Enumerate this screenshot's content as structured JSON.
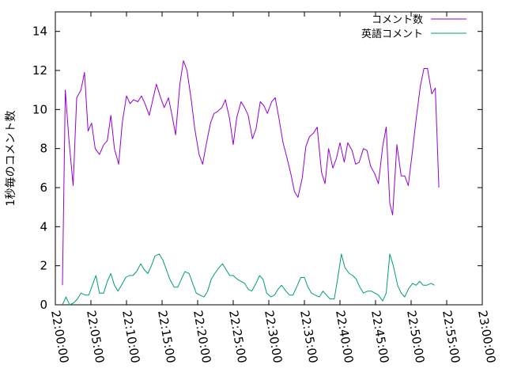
{
  "chart_data": {
    "type": "line",
    "title": "",
    "xlabel": "",
    "ylabel": "1秒毎のコメント数",
    "xlim": [
      "22:00:00",
      "23:00:00"
    ],
    "ylim": [
      0,
      15
    ],
    "grid": false,
    "legend_position": "top-right",
    "x_ticks": [
      "22:00:00",
      "22:05:00",
      "22:10:00",
      "22:15:00",
      "22:20:00",
      "22:25:00",
      "22:30:00",
      "22:35:00",
      "22:40:00",
      "22:45:00",
      "22:50:00",
      "22:55:00",
      "23:00:00"
    ],
    "y_ticks": [
      0,
      2,
      4,
      6,
      8,
      10,
      12,
      14
    ],
    "x_unit": "minutes after 22:00:00",
    "series": [
      {
        "name": "コメント数",
        "color": "#9400D3",
        "points": [
          [
            1.0,
            1.0
          ],
          [
            1.4,
            11.0
          ],
          [
            1.9,
            8.5
          ],
          [
            2.5,
            6.1
          ],
          [
            3.0,
            10.6
          ],
          [
            3.6,
            11.0
          ],
          [
            4.1,
            11.9
          ],
          [
            4.6,
            8.9
          ],
          [
            5.1,
            9.3
          ],
          [
            5.6,
            8.0
          ],
          [
            6.2,
            7.7
          ],
          [
            6.8,
            8.2
          ],
          [
            7.3,
            8.4
          ],
          [
            7.8,
            9.7
          ],
          [
            8.3,
            8.0
          ],
          [
            8.9,
            7.2
          ],
          [
            9.4,
            9.3
          ],
          [
            10.0,
            10.7
          ],
          [
            10.5,
            10.3
          ],
          [
            11.0,
            10.5
          ],
          [
            11.6,
            10.4
          ],
          [
            12.1,
            10.7
          ],
          [
            12.6,
            10.3
          ],
          [
            13.2,
            9.7
          ],
          [
            13.7,
            10.5
          ],
          [
            14.2,
            11.3
          ],
          [
            14.8,
            10.6
          ],
          [
            15.3,
            10.1
          ],
          [
            15.9,
            10.6
          ],
          [
            16.4,
            9.7
          ],
          [
            16.9,
            8.7
          ],
          [
            17.5,
            11.3
          ],
          [
            18.0,
            12.5
          ],
          [
            18.5,
            12.0
          ],
          [
            19.1,
            10.5
          ],
          [
            19.6,
            9.0
          ],
          [
            20.2,
            7.7
          ],
          [
            20.7,
            7.2
          ],
          [
            21.2,
            8.2
          ],
          [
            21.8,
            9.3
          ],
          [
            22.3,
            9.8
          ],
          [
            22.8,
            9.9
          ],
          [
            23.4,
            10.1
          ],
          [
            23.9,
            10.5
          ],
          [
            24.5,
            9.5
          ],
          [
            25.0,
            8.2
          ],
          [
            25.5,
            9.6
          ],
          [
            26.1,
            10.4
          ],
          [
            26.6,
            10.1
          ],
          [
            27.1,
            9.7
          ],
          [
            27.7,
            8.5
          ],
          [
            28.2,
            9.0
          ],
          [
            28.8,
            10.4
          ],
          [
            29.3,
            10.2
          ],
          [
            29.8,
            9.8
          ],
          [
            30.4,
            10.4
          ],
          [
            30.9,
            10.6
          ],
          [
            31.4,
            9.6
          ],
          [
            32.0,
            8.3
          ],
          [
            32.5,
            7.6
          ],
          [
            33.1,
            6.7
          ],
          [
            33.6,
            5.8
          ],
          [
            34.1,
            5.5
          ],
          [
            34.7,
            6.5
          ],
          [
            35.2,
            8.1
          ],
          [
            35.7,
            8.6
          ],
          [
            36.3,
            8.8
          ],
          [
            36.8,
            9.1
          ],
          [
            37.4,
            6.8
          ],
          [
            37.9,
            6.2
          ],
          [
            38.4,
            8.0
          ],
          [
            39.0,
            7.0
          ],
          [
            39.5,
            7.5
          ],
          [
            40.0,
            8.3
          ],
          [
            40.6,
            7.3
          ],
          [
            41.1,
            8.3
          ],
          [
            41.7,
            7.9
          ],
          [
            42.2,
            7.2
          ],
          [
            42.7,
            7.3
          ],
          [
            43.3,
            8.0
          ],
          [
            43.8,
            7.9
          ],
          [
            44.3,
            7.1
          ],
          [
            44.9,
            6.7
          ],
          [
            45.4,
            6.2
          ],
          [
            46.0,
            8.1
          ],
          [
            46.5,
            9.1
          ],
          [
            47.0,
            5.2
          ],
          [
            47.4,
            4.6
          ],
          [
            48.0,
            8.2
          ],
          [
            48.6,
            6.6
          ],
          [
            49.1,
            6.6
          ],
          [
            49.6,
            6.1
          ],
          [
            50.2,
            7.9
          ],
          [
            50.7,
            9.5
          ],
          [
            51.3,
            11.2
          ],
          [
            51.8,
            12.1
          ],
          [
            52.3,
            12.1
          ],
          [
            52.9,
            10.8
          ],
          [
            53.4,
            11.1
          ],
          [
            53.9,
            6.0
          ]
        ]
      },
      {
        "name": "英語コメント",
        "color": "#009E73",
        "points": [
          [
            1.0,
            0.0
          ],
          [
            1.5,
            0.4
          ],
          [
            2.0,
            0.0
          ],
          [
            2.6,
            0.1
          ],
          [
            3.1,
            0.3
          ],
          [
            3.6,
            0.6
          ],
          [
            4.2,
            0.5
          ],
          [
            4.7,
            0.5
          ],
          [
            5.2,
            1.0
          ],
          [
            5.7,
            1.5
          ],
          [
            6.2,
            0.6
          ],
          [
            6.8,
            0.6
          ],
          [
            7.3,
            1.2
          ],
          [
            7.8,
            1.6
          ],
          [
            8.3,
            1.0
          ],
          [
            8.8,
            0.7
          ],
          [
            9.3,
            1.0
          ],
          [
            9.9,
            1.4
          ],
          [
            10.4,
            1.5
          ],
          [
            10.9,
            1.5
          ],
          [
            11.4,
            1.7
          ],
          [
            12.0,
            2.1
          ],
          [
            12.5,
            1.8
          ],
          [
            13.0,
            1.6
          ],
          [
            13.5,
            2.0
          ],
          [
            14.0,
            2.5
          ],
          [
            14.6,
            2.6
          ],
          [
            15.1,
            2.3
          ],
          [
            15.6,
            1.8
          ],
          [
            16.1,
            1.3
          ],
          [
            16.7,
            0.9
          ],
          [
            17.2,
            0.9
          ],
          [
            17.7,
            1.3
          ],
          [
            18.2,
            1.7
          ],
          [
            18.8,
            1.6
          ],
          [
            19.3,
            1.1
          ],
          [
            19.8,
            0.6
          ],
          [
            20.3,
            0.5
          ],
          [
            20.9,
            0.4
          ],
          [
            21.4,
            0.7
          ],
          [
            21.9,
            1.3
          ],
          [
            22.4,
            1.6
          ],
          [
            23.0,
            1.9
          ],
          [
            23.5,
            2.1
          ],
          [
            24.0,
            1.8
          ],
          [
            24.5,
            1.5
          ],
          [
            25.0,
            1.5
          ],
          [
            25.6,
            1.3
          ],
          [
            26.1,
            1.2
          ],
          [
            26.6,
            1.1
          ],
          [
            27.1,
            0.8
          ],
          [
            27.6,
            0.7
          ],
          [
            28.2,
            1.1
          ],
          [
            28.7,
            1.5
          ],
          [
            29.2,
            1.3
          ],
          [
            29.7,
            0.6
          ],
          [
            30.3,
            0.4
          ],
          [
            30.8,
            0.5
          ],
          [
            31.3,
            0.8
          ],
          [
            31.8,
            1.0
          ],
          [
            32.4,
            0.7
          ],
          [
            32.9,
            0.5
          ],
          [
            33.4,
            0.5
          ],
          [
            33.9,
            0.9
          ],
          [
            34.5,
            1.4
          ],
          [
            35.0,
            1.4
          ],
          [
            35.5,
            0.9
          ],
          [
            36.0,
            0.6
          ],
          [
            36.5,
            0.5
          ],
          [
            37.1,
            0.4
          ],
          [
            37.6,
            0.7
          ],
          [
            38.1,
            0.5
          ],
          [
            38.6,
            0.3
          ],
          [
            39.2,
            0.3
          ],
          [
            39.7,
            1.4
          ],
          [
            40.2,
            2.6
          ],
          [
            40.7,
            1.9
          ],
          [
            41.3,
            1.6
          ],
          [
            41.8,
            1.5
          ],
          [
            42.3,
            1.3
          ],
          [
            42.8,
            0.9
          ],
          [
            43.3,
            0.6
          ],
          [
            43.9,
            0.7
          ],
          [
            44.4,
            0.7
          ],
          [
            44.9,
            0.6
          ],
          [
            45.4,
            0.5
          ],
          [
            46.0,
            0.2
          ],
          [
            46.5,
            0.6
          ],
          [
            47.0,
            2.6
          ],
          [
            47.5,
            2.0
          ],
          [
            48.1,
            1.0
          ],
          [
            48.6,
            0.6
          ],
          [
            49.1,
            0.4
          ],
          [
            49.6,
            0.8
          ],
          [
            50.2,
            1.1
          ],
          [
            50.7,
            1.0
          ],
          [
            51.2,
            1.2
          ],
          [
            51.7,
            1.0
          ],
          [
            52.2,
            1.0
          ],
          [
            52.8,
            1.1
          ],
          [
            53.3,
            1.0
          ]
        ]
      }
    ]
  }
}
